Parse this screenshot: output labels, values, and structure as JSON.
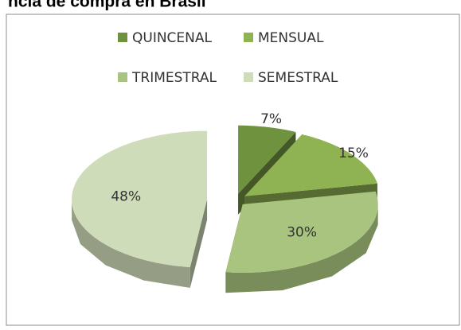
{
  "chart_data": {
    "type": "pie3d",
    "title": "ncia de compra en Brasil",
    "categories": [
      "QUINCENAL",
      "MENSUAL",
      "TRIMESTRAL",
      "SEMESTRAL"
    ],
    "values": [
      7,
      15,
      30,
      48
    ],
    "value_labels": [
      "7%",
      "15%",
      "30%",
      "48%"
    ],
    "colors": [
      "#6f923f",
      "#8fb252",
      "#a8c47e",
      "#cfdcb9"
    ],
    "legend": "top"
  }
}
